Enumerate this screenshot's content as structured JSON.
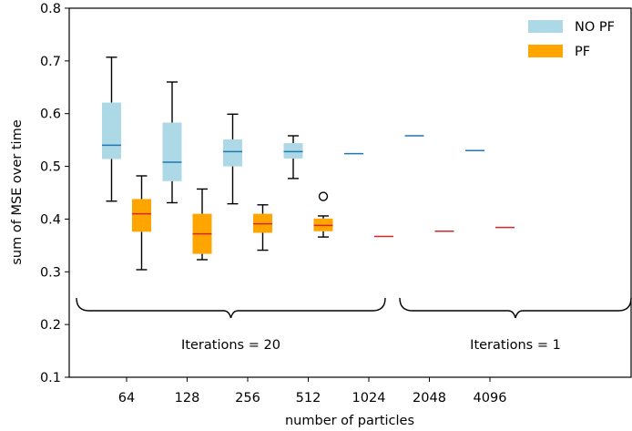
{
  "chart_data": {
    "type": "box",
    "xlabel": "number of particles",
    "ylabel": "sum of MSE over time",
    "ylim": [
      0.1,
      0.8
    ],
    "yticks": [
      0.1,
      0.2,
      0.3,
      0.4,
      0.5,
      0.6,
      0.7,
      0.8
    ],
    "categories": [
      "64",
      "128",
      "256",
      "512",
      "1024",
      "2048",
      "4096"
    ],
    "grid": false,
    "legend_position": "top-right",
    "series": [
      {
        "name": "NO PF",
        "color": "#add8e6",
        "median_color": "#1f77b4",
        "boxes": [
          {
            "category": "64",
            "whislo": 0.434,
            "q1": 0.514,
            "med": 0.54,
            "q3": 0.621,
            "whishi": 0.707,
            "fliers": []
          },
          {
            "category": "128",
            "whislo": 0.431,
            "q1": 0.472,
            "med": 0.508,
            "q3": 0.583,
            "whishi": 0.66,
            "fliers": []
          },
          {
            "category": "256",
            "whislo": 0.429,
            "q1": 0.5,
            "med": 0.528,
            "q3": 0.551,
            "whishi": 0.599,
            "fliers": []
          },
          {
            "category": "512",
            "whislo": 0.477,
            "q1": 0.515,
            "med": 0.528,
            "q3": 0.544,
            "whishi": 0.558,
            "fliers": []
          },
          {
            "category": "1024",
            "whislo": 0.524,
            "q1": 0.524,
            "med": 0.524,
            "q3": 0.524,
            "whishi": 0.524,
            "fliers": []
          },
          {
            "category": "2048",
            "whislo": 0.558,
            "q1": 0.558,
            "med": 0.558,
            "q3": 0.558,
            "whishi": 0.558,
            "fliers": []
          },
          {
            "category": "4096",
            "whislo": 0.53,
            "q1": 0.53,
            "med": 0.53,
            "q3": 0.53,
            "whishi": 0.53,
            "fliers": []
          }
        ]
      },
      {
        "name": "PF",
        "color": "#ffa500",
        "median_color": "#d62728",
        "boxes": [
          {
            "category": "64",
            "whislo": 0.304,
            "q1": 0.376,
            "med": 0.41,
            "q3": 0.438,
            "whishi": 0.482,
            "fliers": []
          },
          {
            "category": "128",
            "whislo": 0.323,
            "q1": 0.334,
            "med": 0.372,
            "q3": 0.41,
            "whishi": 0.457,
            "fliers": []
          },
          {
            "category": "256",
            "whislo": 0.341,
            "q1": 0.374,
            "med": 0.391,
            "q3": 0.41,
            "whishi": 0.427,
            "fliers": []
          },
          {
            "category": "512",
            "whislo": 0.366,
            "q1": 0.377,
            "med": 0.388,
            "q3": 0.401,
            "whishi": 0.406,
            "fliers": [
              0.443
            ]
          },
          {
            "category": "1024",
            "whislo": 0.367,
            "q1": 0.367,
            "med": 0.367,
            "q3": 0.367,
            "whishi": 0.367,
            "fliers": []
          },
          {
            "category": "2048",
            "whislo": 0.377,
            "q1": 0.377,
            "med": 0.377,
            "q3": 0.377,
            "whishi": 0.377,
            "fliers": []
          },
          {
            "category": "4096",
            "whislo": 0.384,
            "q1": 0.384,
            "med": 0.384,
            "q3": 0.384,
            "whishi": 0.384,
            "fliers": []
          }
        ]
      }
    ],
    "annotations": [
      {
        "text": "Iterations = 20",
        "from": "64",
        "to": "512",
        "y": 0.22
      },
      {
        "text": "Iterations = 1",
        "from": "1024",
        "to": "4096",
        "y": 0.22
      }
    ]
  }
}
